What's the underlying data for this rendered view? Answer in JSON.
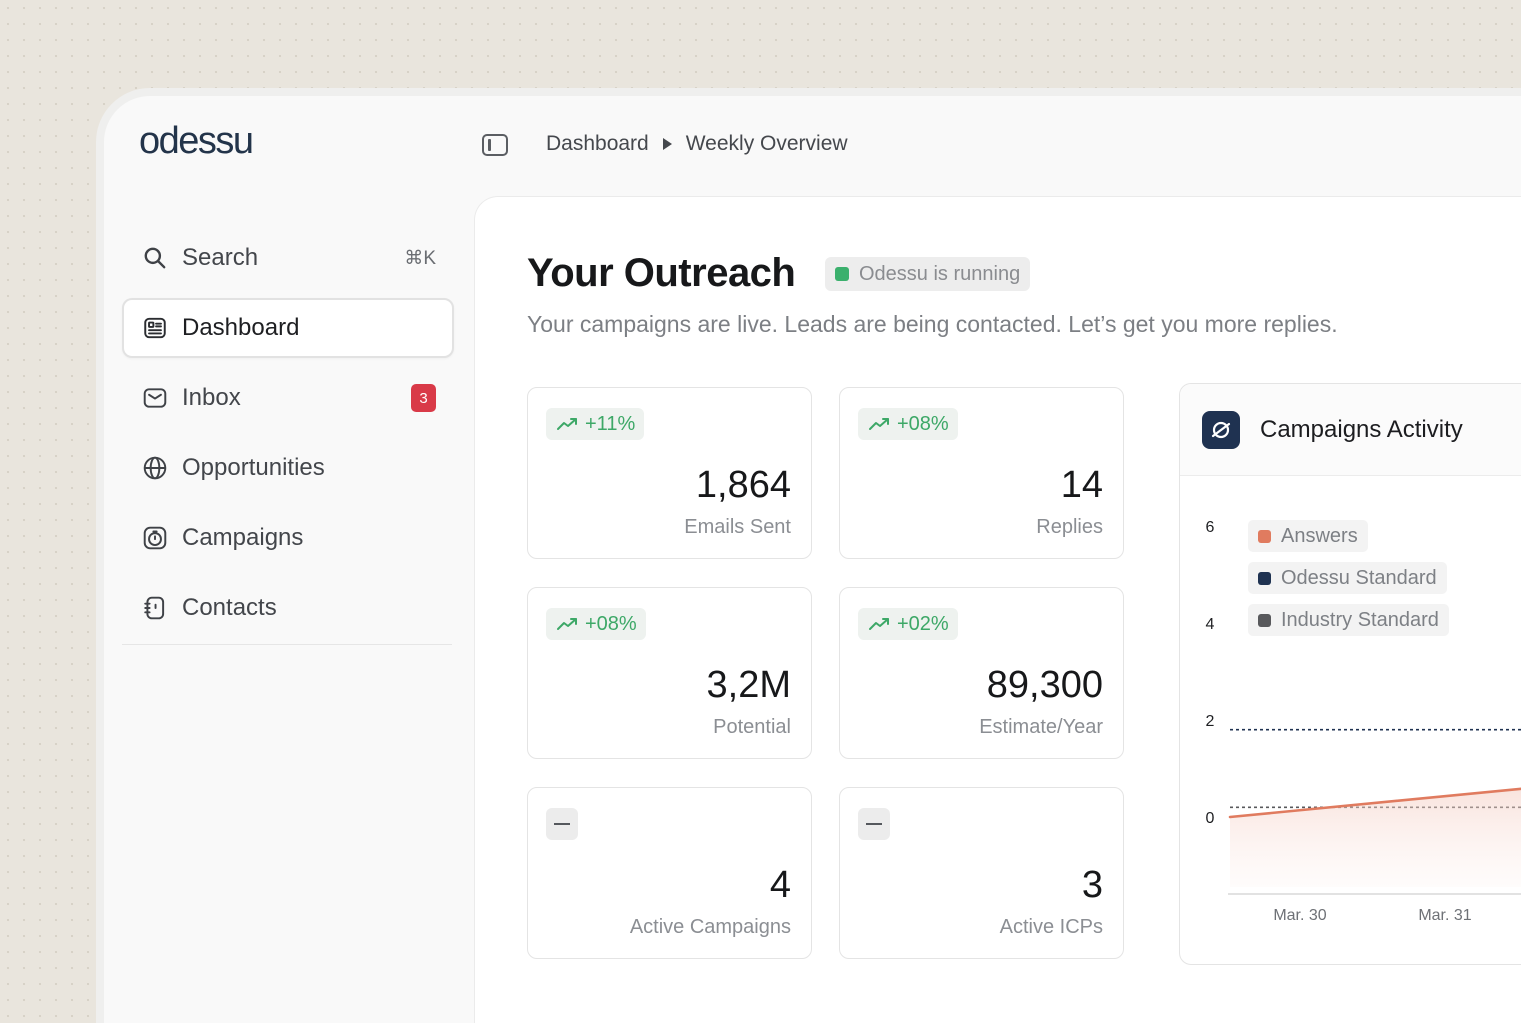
{
  "app": {
    "logo_text": "odessu"
  },
  "breadcrumb": {
    "items": [
      "Dashboard",
      "Weekly Overview"
    ]
  },
  "sidebar": {
    "search": {
      "label": "Search",
      "shortcut": "⌘K"
    },
    "items": [
      {
        "label": "Dashboard",
        "icon": "news-icon",
        "active": true
      },
      {
        "label": "Inbox",
        "icon": "mail-icon",
        "badge": "3"
      },
      {
        "label": "Opportunities",
        "icon": "globe-icon"
      },
      {
        "label": "Campaigns",
        "icon": "timer-icon"
      },
      {
        "label": "Contacts",
        "icon": "contact-book-icon"
      }
    ]
  },
  "main": {
    "title": "Your Outreach",
    "status": "Odessu is running",
    "subtitle": "Your campaigns are live. Leads are being contacted. Let’s get you more replies.",
    "stats": [
      {
        "trend": "+11%",
        "value": "1,864",
        "label": "Emails Sent"
      },
      {
        "trend": "+08%",
        "value": "14",
        "label": "Replies"
      },
      {
        "trend": "+08%",
        "value": "3,2M",
        "label": "Potential"
      },
      {
        "trend": "+02%",
        "value": "89,300",
        "label": "Estimate/Year"
      },
      {
        "trend": "—",
        "value": "4",
        "label": "Active Campaigns"
      },
      {
        "trend": "—",
        "value": "3",
        "label": "Active ICPs"
      }
    ]
  },
  "colors": {
    "accent_green": "#3bb06d",
    "badge_red": "#d93a48",
    "answers": "#e07b5f",
    "odessu_standard": "#1f3251",
    "industry_standard": "#58595c"
  },
  "chart_data": {
    "type": "line",
    "title": "Campaigns Activity",
    "categories": [
      "Mar. 30",
      "Mar. 31"
    ],
    "yticks": [
      0,
      2,
      4,
      6
    ],
    "ylim": [
      0,
      6
    ],
    "legend": [
      "Answers",
      "Odessu Standard",
      "Industry Standard"
    ],
    "series": [
      {
        "name": "Answers",
        "values": [
          0,
          0.7
        ],
        "style": "solid-area"
      },
      {
        "name": "Odessu Standard",
        "values": [
          1.8,
          1.8
        ],
        "style": "dotted"
      },
      {
        "name": "Industry Standard",
        "values": [
          0.2,
          0.2
        ],
        "style": "dotted"
      }
    ]
  }
}
